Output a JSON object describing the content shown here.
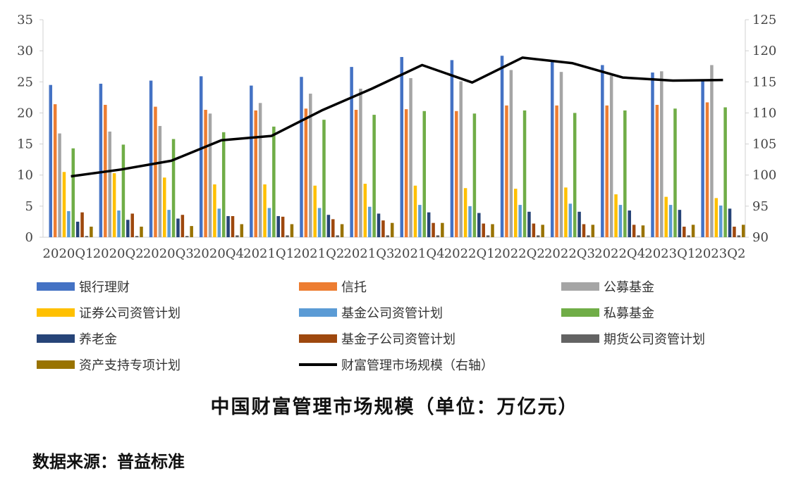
{
  "chart_data": {
    "type": "bar",
    "title": "中国财富管理市场规模（单位：万亿元）",
    "categories": [
      "2020Q1",
      "2020Q2",
      "2020Q3",
      "2020Q4",
      "2021Q1",
      "2021Q2",
      "2021Q3",
      "2021Q4",
      "2022Q1",
      "2022Q2",
      "2022Q3",
      "2022Q4",
      "2023Q1",
      "2023Q2"
    ],
    "ylim": [
      0,
      35
    ],
    "yticks": [
      "0",
      "5",
      "10",
      "15",
      "20",
      "25",
      "30",
      "35"
    ],
    "y2lim": [
      90,
      125
    ],
    "y2ticks": [
      "90",
      "95",
      "100",
      "105",
      "110",
      "115",
      "120",
      "125"
    ],
    "grid": false,
    "legend_position": "bottom",
    "series": [
      {
        "name": "银行理财",
        "color": "#4472c4",
        "values": [
          24.5,
          24.7,
          25.2,
          25.9,
          24.4,
          25.8,
          27.4,
          29.0,
          28.5,
          29.2,
          28.3,
          27.7,
          26.5,
          25.3
        ]
      },
      {
        "name": "信托",
        "color": "#ed7d31",
        "values": [
          21.4,
          21.3,
          21.0,
          20.5,
          20.4,
          20.7,
          20.5,
          20.6,
          20.3,
          21.2,
          21.2,
          21.2,
          21.3,
          21.7
        ]
      },
      {
        "name": "公募基金",
        "color": "#a5a5a5",
        "values": [
          16.7,
          17.0,
          17.9,
          19.9,
          21.6,
          23.1,
          23.9,
          25.6,
          25.1,
          26.9,
          26.6,
          26.0,
          26.7,
          27.7
        ]
      },
      {
        "name": "证券公司资管计划",
        "color": "#ffc000",
        "values": [
          10.5,
          10.3,
          9.6,
          8.5,
          8.5,
          8.3,
          8.6,
          8.3,
          7.9,
          7.8,
          8.0,
          6.9,
          6.5,
          6.3
        ]
      },
      {
        "name": "基金公司资管计划",
        "color": "#5b9bd5",
        "values": [
          4.2,
          4.3,
          4.4,
          4.6,
          4.7,
          4.7,
          4.9,
          5.2,
          5.0,
          5.2,
          5.4,
          5.2,
          5.2,
          5.1
        ]
      },
      {
        "name": "私募基金",
        "color": "#70ad47",
        "values": [
          14.3,
          14.9,
          15.8,
          16.9,
          17.8,
          18.9,
          19.7,
          20.3,
          19.9,
          20.4,
          20.0,
          20.4,
          20.7,
          20.9
        ]
      },
      {
        "name": "养老金",
        "color": "#264478",
        "values": [
          2.5,
          2.8,
          3.0,
          3.4,
          3.4,
          3.6,
          3.8,
          4.0,
          3.9,
          4.1,
          4.1,
          4.3,
          4.4,
          4.6
        ]
      },
      {
        "name": "基金子公司资管计划",
        "color": "#9e480e",
        "values": [
          4.0,
          3.8,
          3.6,
          3.4,
          3.3,
          2.9,
          2.7,
          2.3,
          2.2,
          2.2,
          2.1,
          2.0,
          1.7,
          1.7
        ]
      },
      {
        "name": "期货公司资管计划",
        "color": "#636363",
        "values": [
          0.2,
          0.2,
          0.2,
          0.3,
          0.3,
          0.3,
          0.3,
          0.3,
          0.3,
          0.3,
          0.3,
          0.3,
          0.3,
          0.3
        ]
      },
      {
        "name": "资产支持专项计划",
        "color": "#997300",
        "values": [
          1.7,
          1.7,
          1.8,
          2.1,
          2.1,
          2.1,
          2.3,
          2.3,
          2.1,
          2.0,
          2.0,
          1.9,
          2.0,
          2.0
        ]
      }
    ],
    "line_series": {
      "name": "财富管理市场规模（右轴）",
      "color": "#000000",
      "axis": "right",
      "values": [
        99.8,
        100.9,
        102.3,
        105.6,
        106.3,
        110.4,
        113.9,
        117.7,
        114.9,
        118.9,
        118.0,
        115.7,
        115.2,
        115.3
      ]
    }
  },
  "caption": "中国财富管理市场规模（单位：万亿元）",
  "source": "数据来源：普益标准"
}
